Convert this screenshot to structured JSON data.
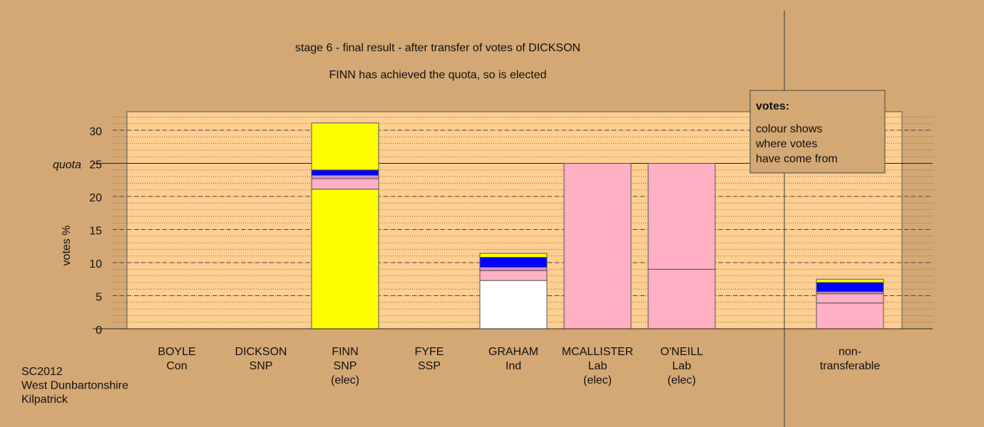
{
  "chart_data": {
    "type": "stacked_bar",
    "title": "stage 6 - final result - after transfer of votes of DICKSON",
    "subtitle": "FINN has achieved the quota, so is elected",
    "ylabel": "votes %",
    "ylim": [
      0,
      32.8
    ],
    "yticks": [
      0,
      5,
      10,
      15,
      20,
      25,
      30
    ],
    "minor_ytick_step": 1,
    "quota": {
      "value": 25,
      "label": "quota"
    },
    "categories": [
      [
        "BOYLE",
        "Con"
      ],
      [
        "DICKSON",
        "SNP"
      ],
      [
        "FINN",
        "SNP",
        "(elec)"
      ],
      [
        "FYFE",
        "SSP"
      ],
      [
        "GRAHAM",
        "Ind"
      ],
      [
        "MCALLISTER",
        "Lab",
        "(elec)"
      ],
      [
        "O'NEILL",
        "Lab",
        "(elec)"
      ],
      [
        "non-",
        "transferable"
      ]
    ],
    "stacks": [
      [
        {
          "value": 0,
          "color": "#ffffff"
        }
      ],
      [
        {
          "value": 0,
          "color": "#ffff00"
        }
      ],
      [
        {
          "value": 21.1,
          "color": "#ffff00"
        },
        {
          "value": 1.6,
          "color": "#ffb0c4"
        },
        {
          "value": 0.5,
          "color": "#d890c8"
        },
        {
          "value": 0.8,
          "color": "#0000ff"
        },
        {
          "value": 7.1,
          "color": "#ffff00"
        }
      ],
      [
        {
          "value": 0,
          "color": "#ff0000"
        }
      ],
      [
        {
          "value": 7.3,
          "color": "#ffffff"
        },
        {
          "value": 1.5,
          "color": "#ffb0c4"
        },
        {
          "value": 0.5,
          "color": "#d890c8"
        },
        {
          "value": 1.5,
          "color": "#0000ff"
        },
        {
          "value": 0.6,
          "color": "#ffff00"
        }
      ],
      [
        {
          "value": 25,
          "color": "#ffb0c4"
        }
      ],
      [
        {
          "value": 9.0,
          "color": "#ffb0c4"
        },
        {
          "value": 16.0,
          "color": "#ffb0c4"
        }
      ],
      [
        {
          "value": 3.9,
          "color": "#ffb0c4"
        },
        {
          "value": 1.4,
          "color": "#ffb0c4"
        },
        {
          "value": 0.3,
          "color": "#d890c8"
        },
        {
          "value": 1.4,
          "color": "#0000ff"
        },
        {
          "value": 0.5,
          "color": "#ffff00"
        }
      ]
    ],
    "legend_title": "votes:",
    "legend_text": [
      "colour shows",
      "where votes",
      "have come from"
    ],
    "notes": [
      "SC2012",
      "West Dunbartonshire",
      "Kilpatrick"
    ]
  }
}
